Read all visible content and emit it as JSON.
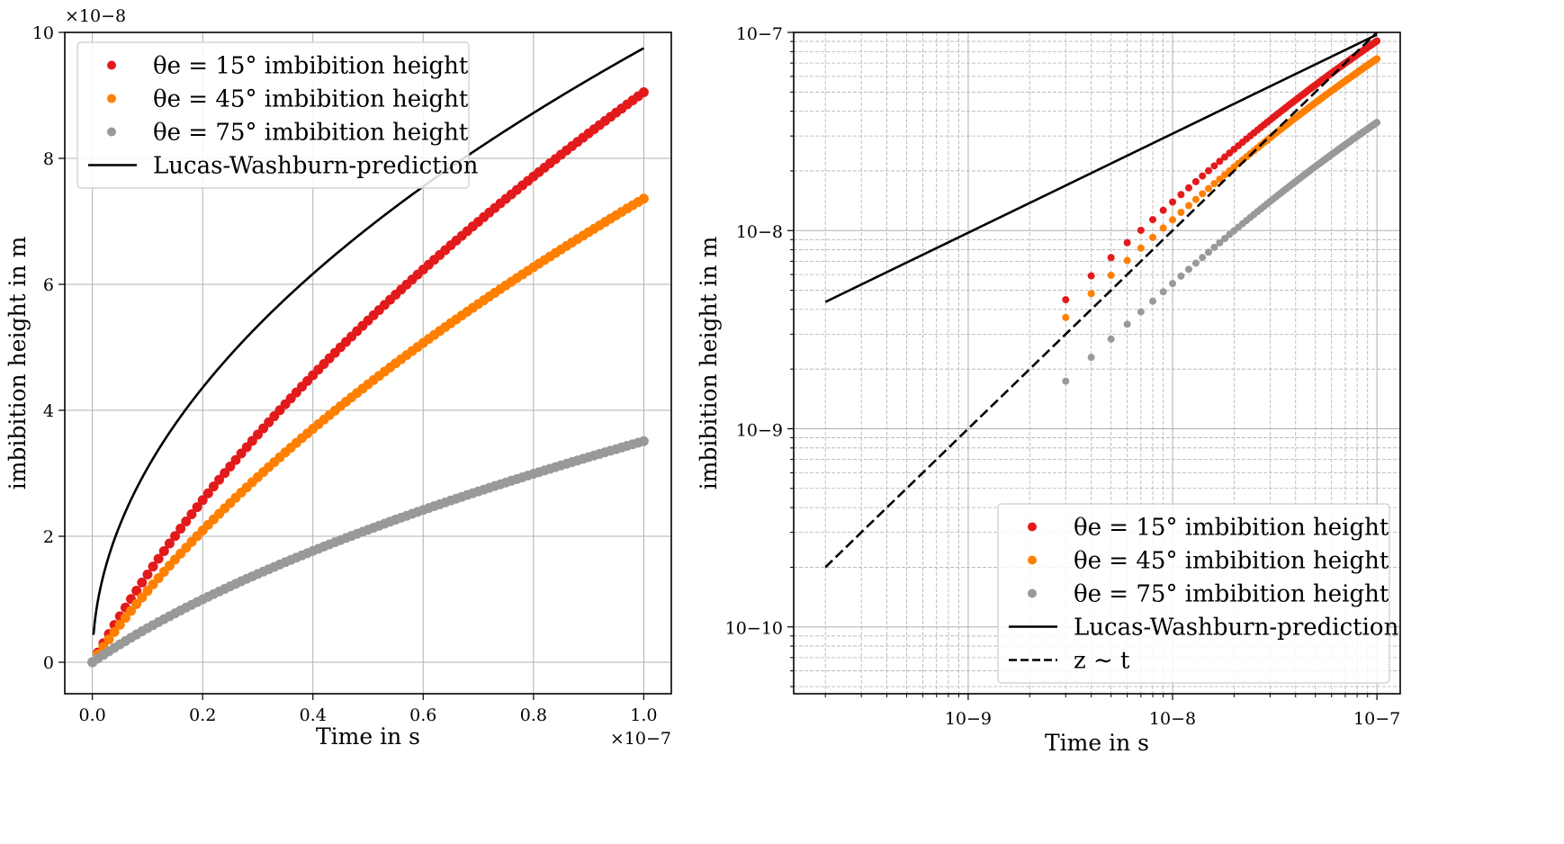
{
  "chart_data": [
    {
      "type": "scatter",
      "xlabel": "Time in s",
      "ylabel": "imbibition height in m",
      "xscale": "linear",
      "yscale": "linear",
      "x_offset_text": "×10−7",
      "y_offset_text": "×10−8",
      "xlim": [
        -5e-09,
        1.05e-07
      ],
      "ylim": [
        -5e-09,
        1e-07
      ],
      "xticks": [
        0,
        2e-08,
        4e-08,
        6e-08,
        8e-08,
        1e-07
      ],
      "xtick_labels": [
        "0.0",
        "0.2",
        "0.4",
        "0.6",
        "0.8",
        "1.0"
      ],
      "yticks": [
        0,
        2e-08,
        4e-08,
        6e-08,
        8e-08,
        1e-07
      ],
      "ytick_labels": [
        "0",
        "2",
        "4",
        "6",
        "8",
        "10"
      ],
      "grid": true,
      "legend_position": "top-left",
      "series": [
        {
          "name": "θe = 15° imbibition height",
          "style": "dots",
          "color": "#e31a1c",
          "coef": 9.05e-08,
          "curve": "sat"
        },
        {
          "name": "θe = 45° imbibition height",
          "style": "dots",
          "color": "#ff7f00",
          "coef": 7.36e-08,
          "curve": "sat"
        },
        {
          "name": "θe = 75° imbibition height",
          "style": "dots",
          "color": "#999999",
          "coef": 3.51e-08,
          "curve": "sat"
        },
        {
          "name": "Lucas-Washburn-prediction",
          "style": "solid",
          "color": "#000000",
          "coef": 9.75e-08,
          "curve": "sqrt"
        }
      ]
    },
    {
      "type": "scatter",
      "xlabel": "Time in s",
      "ylabel": "imbibition height in m",
      "xscale": "log",
      "yscale": "log",
      "xlim": [
        1.4e-10,
        1.3e-07
      ],
      "ylim": [
        4.6e-11,
        1e-07
      ],
      "xticks": [
        1e-09,
        1e-08,
        1e-07
      ],
      "xtick_labels": [
        "10−9",
        "10−8",
        "10−7"
      ],
      "yticks": [
        1e-10,
        1e-09,
        1e-08,
        1e-07
      ],
      "ytick_labels": [
        "10−10",
        "10−9",
        "10−8",
        "10−7"
      ],
      "grid": true,
      "legend_position": "bottom-right",
      "series": [
        {
          "name": "θe = 15° imbibition height",
          "style": "dots",
          "color": "#e31a1c",
          "coef": 9.05e-08,
          "curve": "sat"
        },
        {
          "name": "θe = 45° imbibition height",
          "style": "dots",
          "color": "#ff7f00",
          "coef": 7.36e-08,
          "curve": "sat"
        },
        {
          "name": "θe = 75° imbibition height",
          "style": "dots",
          "color": "#999999",
          "coef": 3.51e-08,
          "curve": "sat"
        },
        {
          "name": "Lucas-Washburn-prediction",
          "style": "solid",
          "color": "#000000",
          "coef": 9.75e-08,
          "curve": "sqrt"
        },
        {
          "name": "z ∼ t",
          "style": "dashed",
          "color": "#000000",
          "coef": 1.0,
          "curve": "linear"
        }
      ]
    }
  ]
}
